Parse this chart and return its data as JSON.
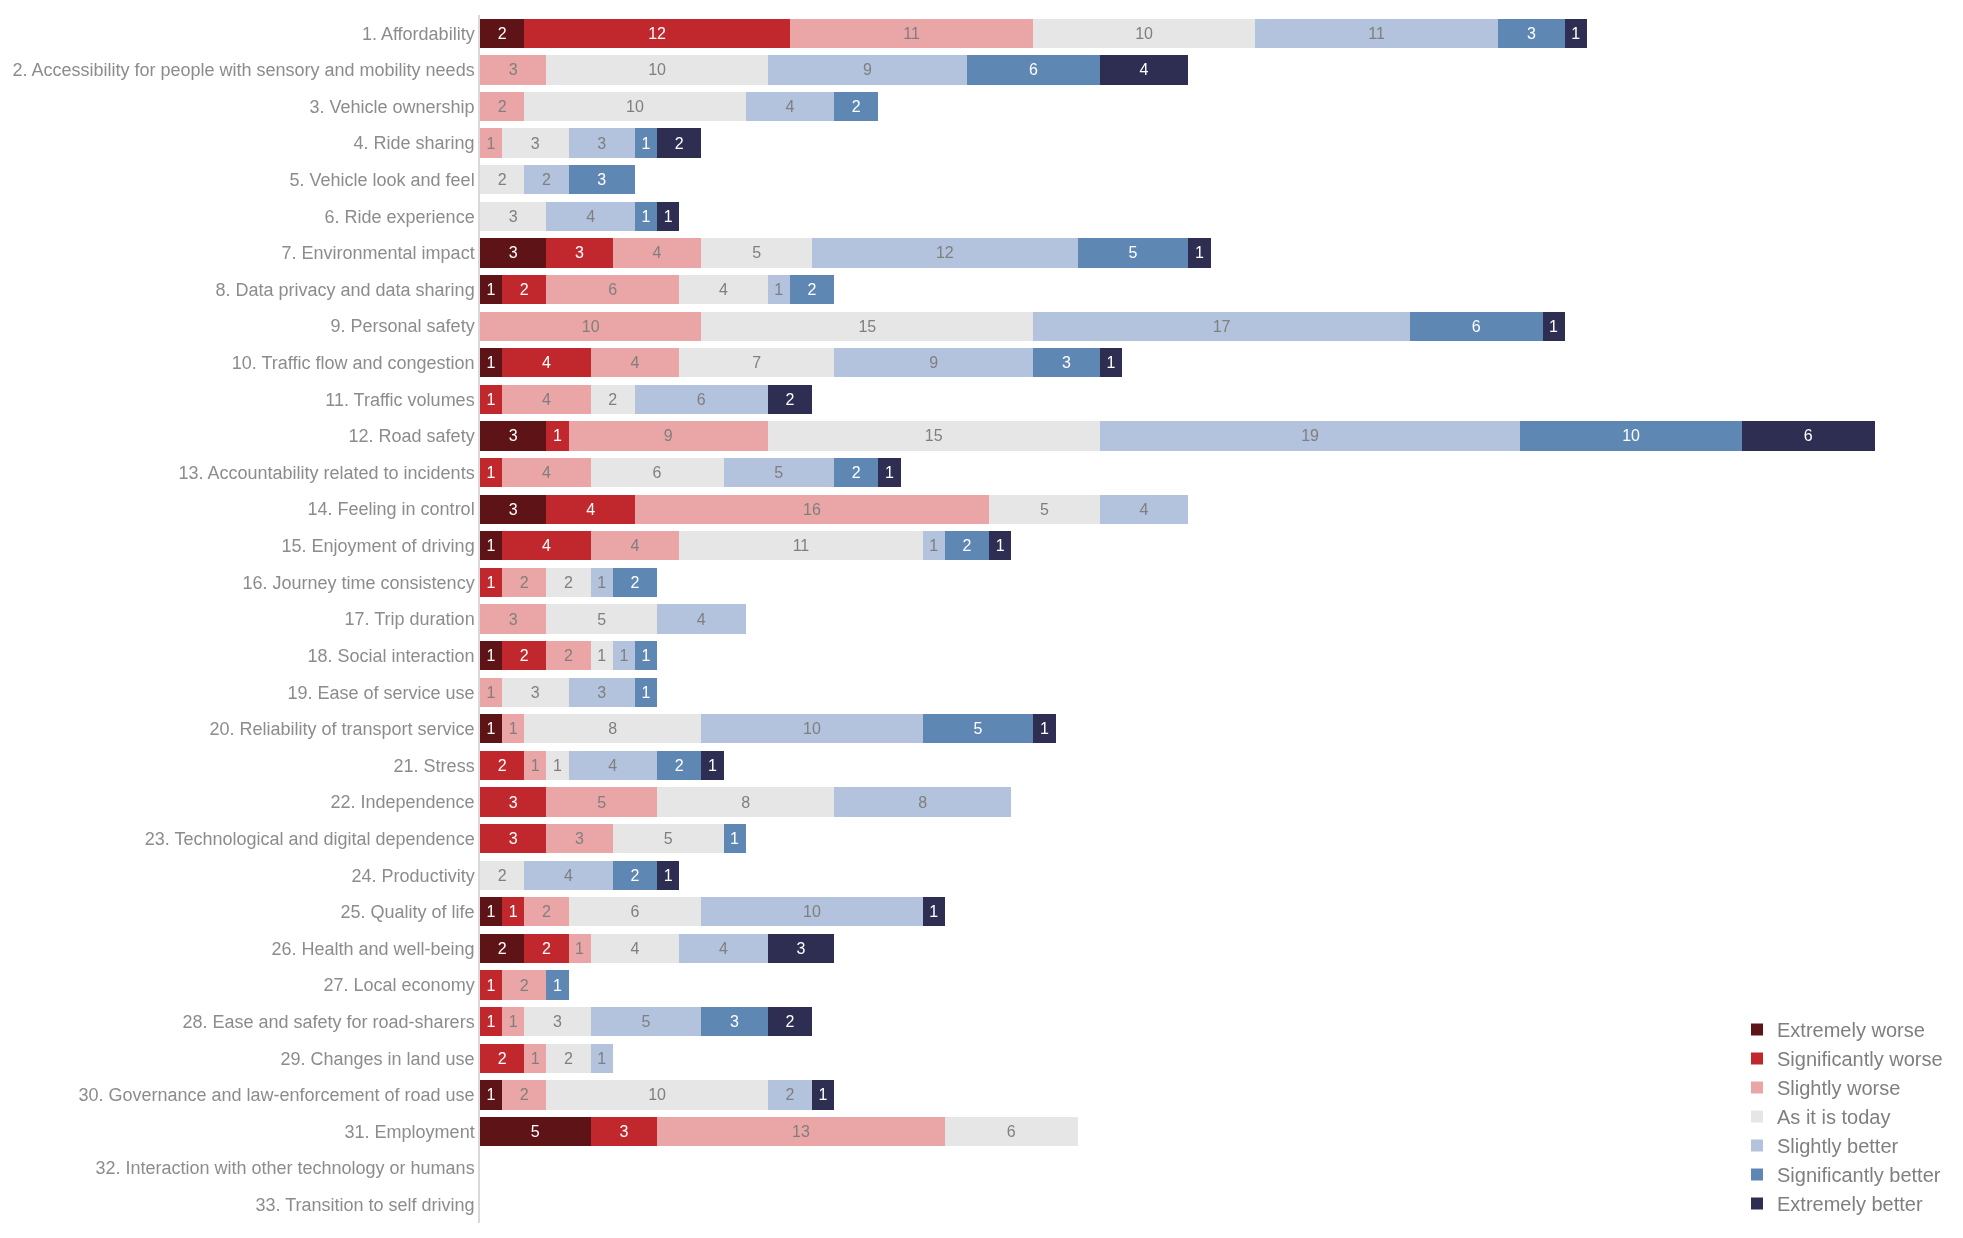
{
  "chart_data": {
    "type": "bar",
    "orientation": "horizontal",
    "stacked": true,
    "data_labels": true,
    "tick_labels": "y",
    "legend": "bottom right",
    "categories": [
      "1. Affordability",
      "2. Accessibility for people with sensory and mobility needs",
      "3. Vehicle ownership",
      "4. Ride sharing",
      "5. Vehicle look and feel",
      "6. Ride experience",
      "7. Environmental impact",
      "8. Data privacy and data sharing",
      "9. Personal safety",
      "10. Traffic flow and congestion",
      "11. Traffic volumes",
      "12. Road safety",
      "13. Accountability related to incidents",
      "14. Feeling in control",
      "15. Enjoyment of driving",
      "16. Journey time consistency",
      "17. Trip duration",
      "18. Social interaction",
      "19. Ease of service use",
      "20. Reliability of transport service",
      "21. Stress",
      "22. Independence",
      "23. Technological and digital dependence",
      "24. Productivity",
      "25. Quality of life",
      "26. Health and well-being",
      "27. Local economy",
      "28. Ease and safety for road-sharers",
      "29. Changes in land use",
      "30. Governance and law-enforcement of road use",
      "31. Employment",
      "32. Interaction with other technology or humans",
      "33. Transition to self driving"
    ],
    "series": [
      {
        "name": "Extremely worse",
        "color": "#5e1416",
        "values": [
          2,
          null,
          null,
          null,
          null,
          null,
          3,
          1,
          null,
          1,
          null,
          3,
          null,
          3,
          1,
          null,
          null,
          1,
          null,
          1,
          null,
          null,
          null,
          null,
          1,
          2,
          null,
          null,
          null,
          1,
          5,
          null,
          null
        ]
      },
      {
        "name": "Significantly worse",
        "color": "#c1282d",
        "values": [
          12,
          null,
          null,
          null,
          null,
          null,
          3,
          2,
          null,
          4,
          1,
          1,
          1,
          4,
          4,
          1,
          null,
          2,
          null,
          null,
          2,
          3,
          3,
          null,
          1,
          2,
          1,
          1,
          2,
          null,
          3,
          null,
          null
        ]
      },
      {
        "name": "Slightly worse",
        "color": "#eaa5a6",
        "values": [
          11,
          3,
          2,
          1,
          null,
          null,
          4,
          6,
          10,
          4,
          4,
          9,
          4,
          16,
          4,
          2,
          3,
          2,
          1,
          1,
          1,
          5,
          3,
          null,
          2,
          1,
          2,
          1,
          1,
          2,
          13,
          null,
          null
        ]
      },
      {
        "name": "As it is today",
        "color": "#e6e6e6",
        "values": [
          10,
          10,
          10,
          3,
          2,
          3,
          5,
          4,
          15,
          7,
          2,
          15,
          6,
          5,
          11,
          2,
          5,
          1,
          3,
          8,
          1,
          8,
          5,
          2,
          6,
          4,
          null,
          3,
          2,
          10,
          6,
          null,
          null
        ]
      },
      {
        "name": "Slightly better",
        "color": "#b3c2dd",
        "values": [
          11,
          9,
          4,
          3,
          2,
          4,
          12,
          1,
          17,
          9,
          6,
          19,
          5,
          4,
          1,
          1,
          4,
          1,
          3,
          10,
          4,
          8,
          null,
          4,
          10,
          4,
          null,
          5,
          1,
          2,
          null,
          null,
          null
        ]
      },
      {
        "name": "Significantly better",
        "color": "#5f87b4",
        "values": [
          3,
          6,
          2,
          1,
          3,
          1,
          5,
          2,
          6,
          3,
          null,
          10,
          2,
          null,
          2,
          2,
          null,
          1,
          1,
          5,
          2,
          null,
          1,
          2,
          null,
          null,
          1,
          3,
          null,
          null,
          null,
          null,
          null
        ]
      },
      {
        "name": "Extremely better",
        "color": "#2e2d52",
        "values": [
          1,
          4,
          null,
          2,
          null,
          1,
          1,
          null,
          1,
          1,
          2,
          6,
          1,
          null,
          1,
          null,
          null,
          null,
          null,
          1,
          1,
          null,
          null,
          1,
          1,
          3,
          null,
          2,
          null,
          1,
          null,
          null,
          null
        ]
      }
    ]
  }
}
